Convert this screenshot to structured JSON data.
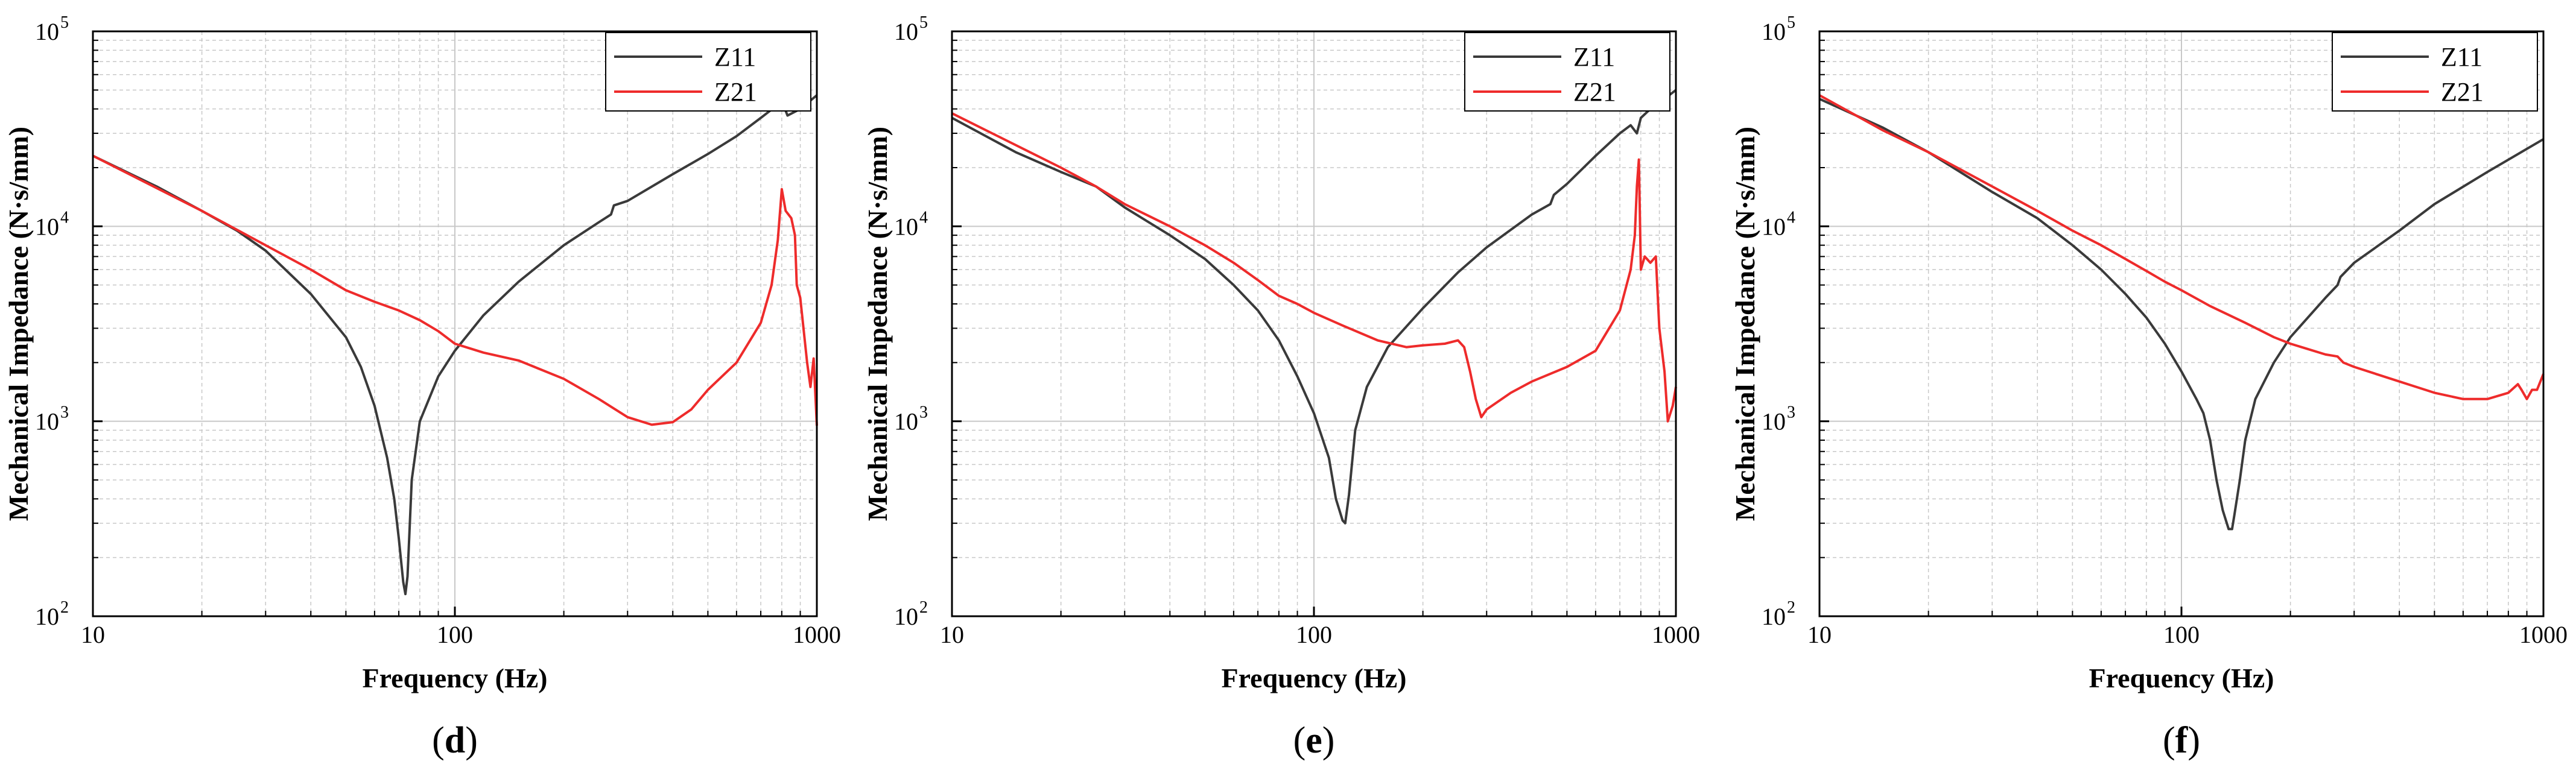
{
  "figure": {
    "panels": [
      {
        "label_open": "(",
        "label_letter": "d",
        "label_close": ")"
      },
      {
        "label_open": "(",
        "label_letter": "e",
        "label_close": ")"
      },
      {
        "label_open": "(",
        "label_letter": "f",
        "label_close": ")"
      }
    ]
  },
  "colors": {
    "Z11": "#3a3a3a",
    "Z21": "#ee2b2b",
    "grid": "#c8c8c8"
  },
  "chart_data": [
    {
      "type": "line",
      "xlabel": "Frequency (Hz)",
      "ylabel": "Mechanical Impedance (N·s/mm)",
      "xscale": "log",
      "yscale": "log",
      "xlim": [
        10,
        1000
      ],
      "ylim": [
        100,
        100000
      ],
      "xticks": [
        {
          "value": 10,
          "label": "10"
        },
        {
          "value": 100,
          "label": "100"
        },
        {
          "value": 1000,
          "label": "1000"
        }
      ],
      "yticks": [
        {
          "value": 100,
          "base": "10",
          "exp": "2"
        },
        {
          "value": 1000,
          "base": "10",
          "exp": "3"
        },
        {
          "value": 10000,
          "base": "10",
          "exp": "4"
        },
        {
          "value": 100000,
          "base": "10",
          "exp": "5"
        }
      ],
      "grid": true,
      "legend_position": "top-right",
      "series": [
        {
          "name": "Z11",
          "x": [
            10,
            15,
            20,
            25,
            30,
            40,
            50,
            55,
            60,
            65,
            68,
            70,
            72,
            73,
            74,
            76,
            80,
            90,
            100,
            120,
            150,
            200,
            250,
            270,
            275,
            300,
            400,
            500,
            600,
            700,
            780,
            800,
            830,
            900,
            1000
          ],
          "y": [
            23000,
            16000,
            12000,
            9500,
            7500,
            4500,
            2700,
            1900,
            1200,
            650,
            400,
            250,
            150,
            130,
            160,
            500,
            1000,
            1700,
            2300,
            3500,
            5200,
            8000,
            10500,
            11500,
            12800,
            13500,
            18500,
            23500,
            29000,
            36000,
            42000,
            44000,
            37000,
            40000,
            47000
          ]
        },
        {
          "name": "Z21",
          "x": [
            10,
            20,
            30,
            40,
            50,
            60,
            70,
            80,
            90,
            100,
            120,
            150,
            200,
            250,
            300,
            350,
            400,
            450,
            500,
            600,
            700,
            750,
            780,
            800,
            820,
            850,
            870,
            880,
            900,
            940,
            960,
            980,
            1000
          ],
          "y": [
            23000,
            12000,
            8000,
            6000,
            4700,
            4100,
            3700,
            3300,
            2900,
            2500,
            2250,
            2050,
            1650,
            1300,
            1050,
            960,
            990,
            1150,
            1450,
            2000,
            3200,
            5000,
            8500,
            15500,
            12000,
            11000,
            9000,
            5000,
            4300,
            2000,
            1500,
            2100,
            950
          ]
        }
      ]
    },
    {
      "type": "line",
      "xlabel": "Frequency (Hz)",
      "ylabel": "Mechanical Impedance (N·s/mm)",
      "xscale": "log",
      "yscale": "log",
      "xlim": [
        10,
        1000
      ],
      "ylim": [
        100,
        100000
      ],
      "xticks": [
        {
          "value": 10,
          "label": "10"
        },
        {
          "value": 100,
          "label": "100"
        },
        {
          "value": 1000,
          "label": "1000"
        }
      ],
      "yticks": [
        {
          "value": 100,
          "base": "10",
          "exp": "2"
        },
        {
          "value": 1000,
          "base": "10",
          "exp": "3"
        },
        {
          "value": 10000,
          "base": "10",
          "exp": "4"
        },
        {
          "value": 100000,
          "base": "10",
          "exp": "5"
        }
      ],
      "grid": true,
      "legend_position": "top-right",
      "series": [
        {
          "name": "Z11",
          "x": [
            10,
            15,
            20,
            25,
            30,
            40,
            50,
            60,
            70,
            80,
            90,
            100,
            110,
            115,
            120,
            122,
            125,
            130,
            140,
            160,
            200,
            250,
            300,
            400,
            450,
            460,
            500,
            600,
            700,
            750,
            780,
            800,
            850,
            900,
            1000
          ],
          "y": [
            36000,
            24000,
            19000,
            16000,
            12500,
            9000,
            6800,
            5000,
            3700,
            2600,
            1700,
            1100,
            650,
            400,
            310,
            300,
            420,
            900,
            1500,
            2400,
            3800,
            5800,
            7800,
            11500,
            13000,
            14500,
            16500,
            23000,
            30000,
            33000,
            30000,
            36000,
            40000,
            43000,
            50000
          ]
        },
        {
          "name": "Z21",
          "x": [
            10,
            20,
            25,
            30,
            40,
            50,
            60,
            70,
            80,
            90,
            100,
            120,
            150,
            180,
            200,
            230,
            250,
            260,
            270,
            280,
            290,
            300,
            350,
            400,
            500,
            600,
            700,
            750,
            770,
            780,
            790,
            800,
            820,
            850,
            880,
            900,
            930,
            950,
            980,
            1000
          ],
          "y": [
            38000,
            20000,
            16000,
            13000,
            10000,
            8000,
            6500,
            5300,
            4400,
            4000,
            3600,
            3100,
            2600,
            2400,
            2450,
            2500,
            2600,
            2400,
            1800,
            1300,
            1050,
            1150,
            1400,
            1600,
            1900,
            2300,
            3700,
            6000,
            9000,
            16000,
            22000,
            6000,
            7000,
            6500,
            7000,
            3000,
            1800,
            1000,
            1200,
            1500
          ]
        }
      ]
    },
    {
      "type": "line",
      "xlabel": "Frequency (Hz)",
      "ylabel": "Mechanical Impedance (N·s/mm)",
      "xscale": "log",
      "yscale": "log",
      "xlim": [
        10,
        1000
      ],
      "ylim": [
        100,
        100000
      ],
      "xticks": [
        {
          "value": 10,
          "label": "10"
        },
        {
          "value": 100,
          "label": "100"
        },
        {
          "value": 1000,
          "label": "1000"
        }
      ],
      "yticks": [
        {
          "value": 100,
          "base": "10",
          "exp": "2"
        },
        {
          "value": 1000,
          "base": "10",
          "exp": "3"
        },
        {
          "value": 10000,
          "base": "10",
          "exp": "4"
        },
        {
          "value": 100000,
          "base": "10",
          "exp": "5"
        }
      ],
      "grid": true,
      "legend_position": "top-right",
      "series": [
        {
          "name": "Z11",
          "x": [
            10,
            15,
            20,
            30,
            40,
            50,
            60,
            70,
            80,
            90,
            100,
            110,
            115,
            120,
            125,
            130,
            135,
            138,
            140,
            145,
            150,
            160,
            180,
            200,
            250,
            270,
            275,
            300,
            400,
            500,
            700,
            1000
          ],
          "y": [
            45000,
            32000,
            24000,
            15000,
            11000,
            8000,
            6000,
            4500,
            3400,
            2500,
            1800,
            1300,
            1100,
            800,
            500,
            350,
            280,
            280,
            330,
            500,
            800,
            1300,
            2000,
            2700,
            4300,
            5000,
            5500,
            6500,
            9500,
            13000,
            19000,
            28000
          ]
        },
        {
          "name": "Z21",
          "x": [
            10,
            15,
            20,
            30,
            40,
            50,
            60,
            70,
            80,
            90,
            100,
            120,
            150,
            180,
            200,
            250,
            270,
            280,
            300,
            400,
            500,
            600,
            700,
            800,
            850,
            870,
            900,
            930,
            960,
            1000
          ],
          "y": [
            47000,
            31000,
            24000,
            16000,
            12000,
            9500,
            8000,
            6800,
            5900,
            5200,
            4700,
            3900,
            3200,
            2700,
            2500,
            2200,
            2150,
            2000,
            1900,
            1600,
            1400,
            1300,
            1300,
            1400,
            1550,
            1450,
            1300,
            1450,
            1450,
            1750
          ]
        }
      ]
    }
  ]
}
